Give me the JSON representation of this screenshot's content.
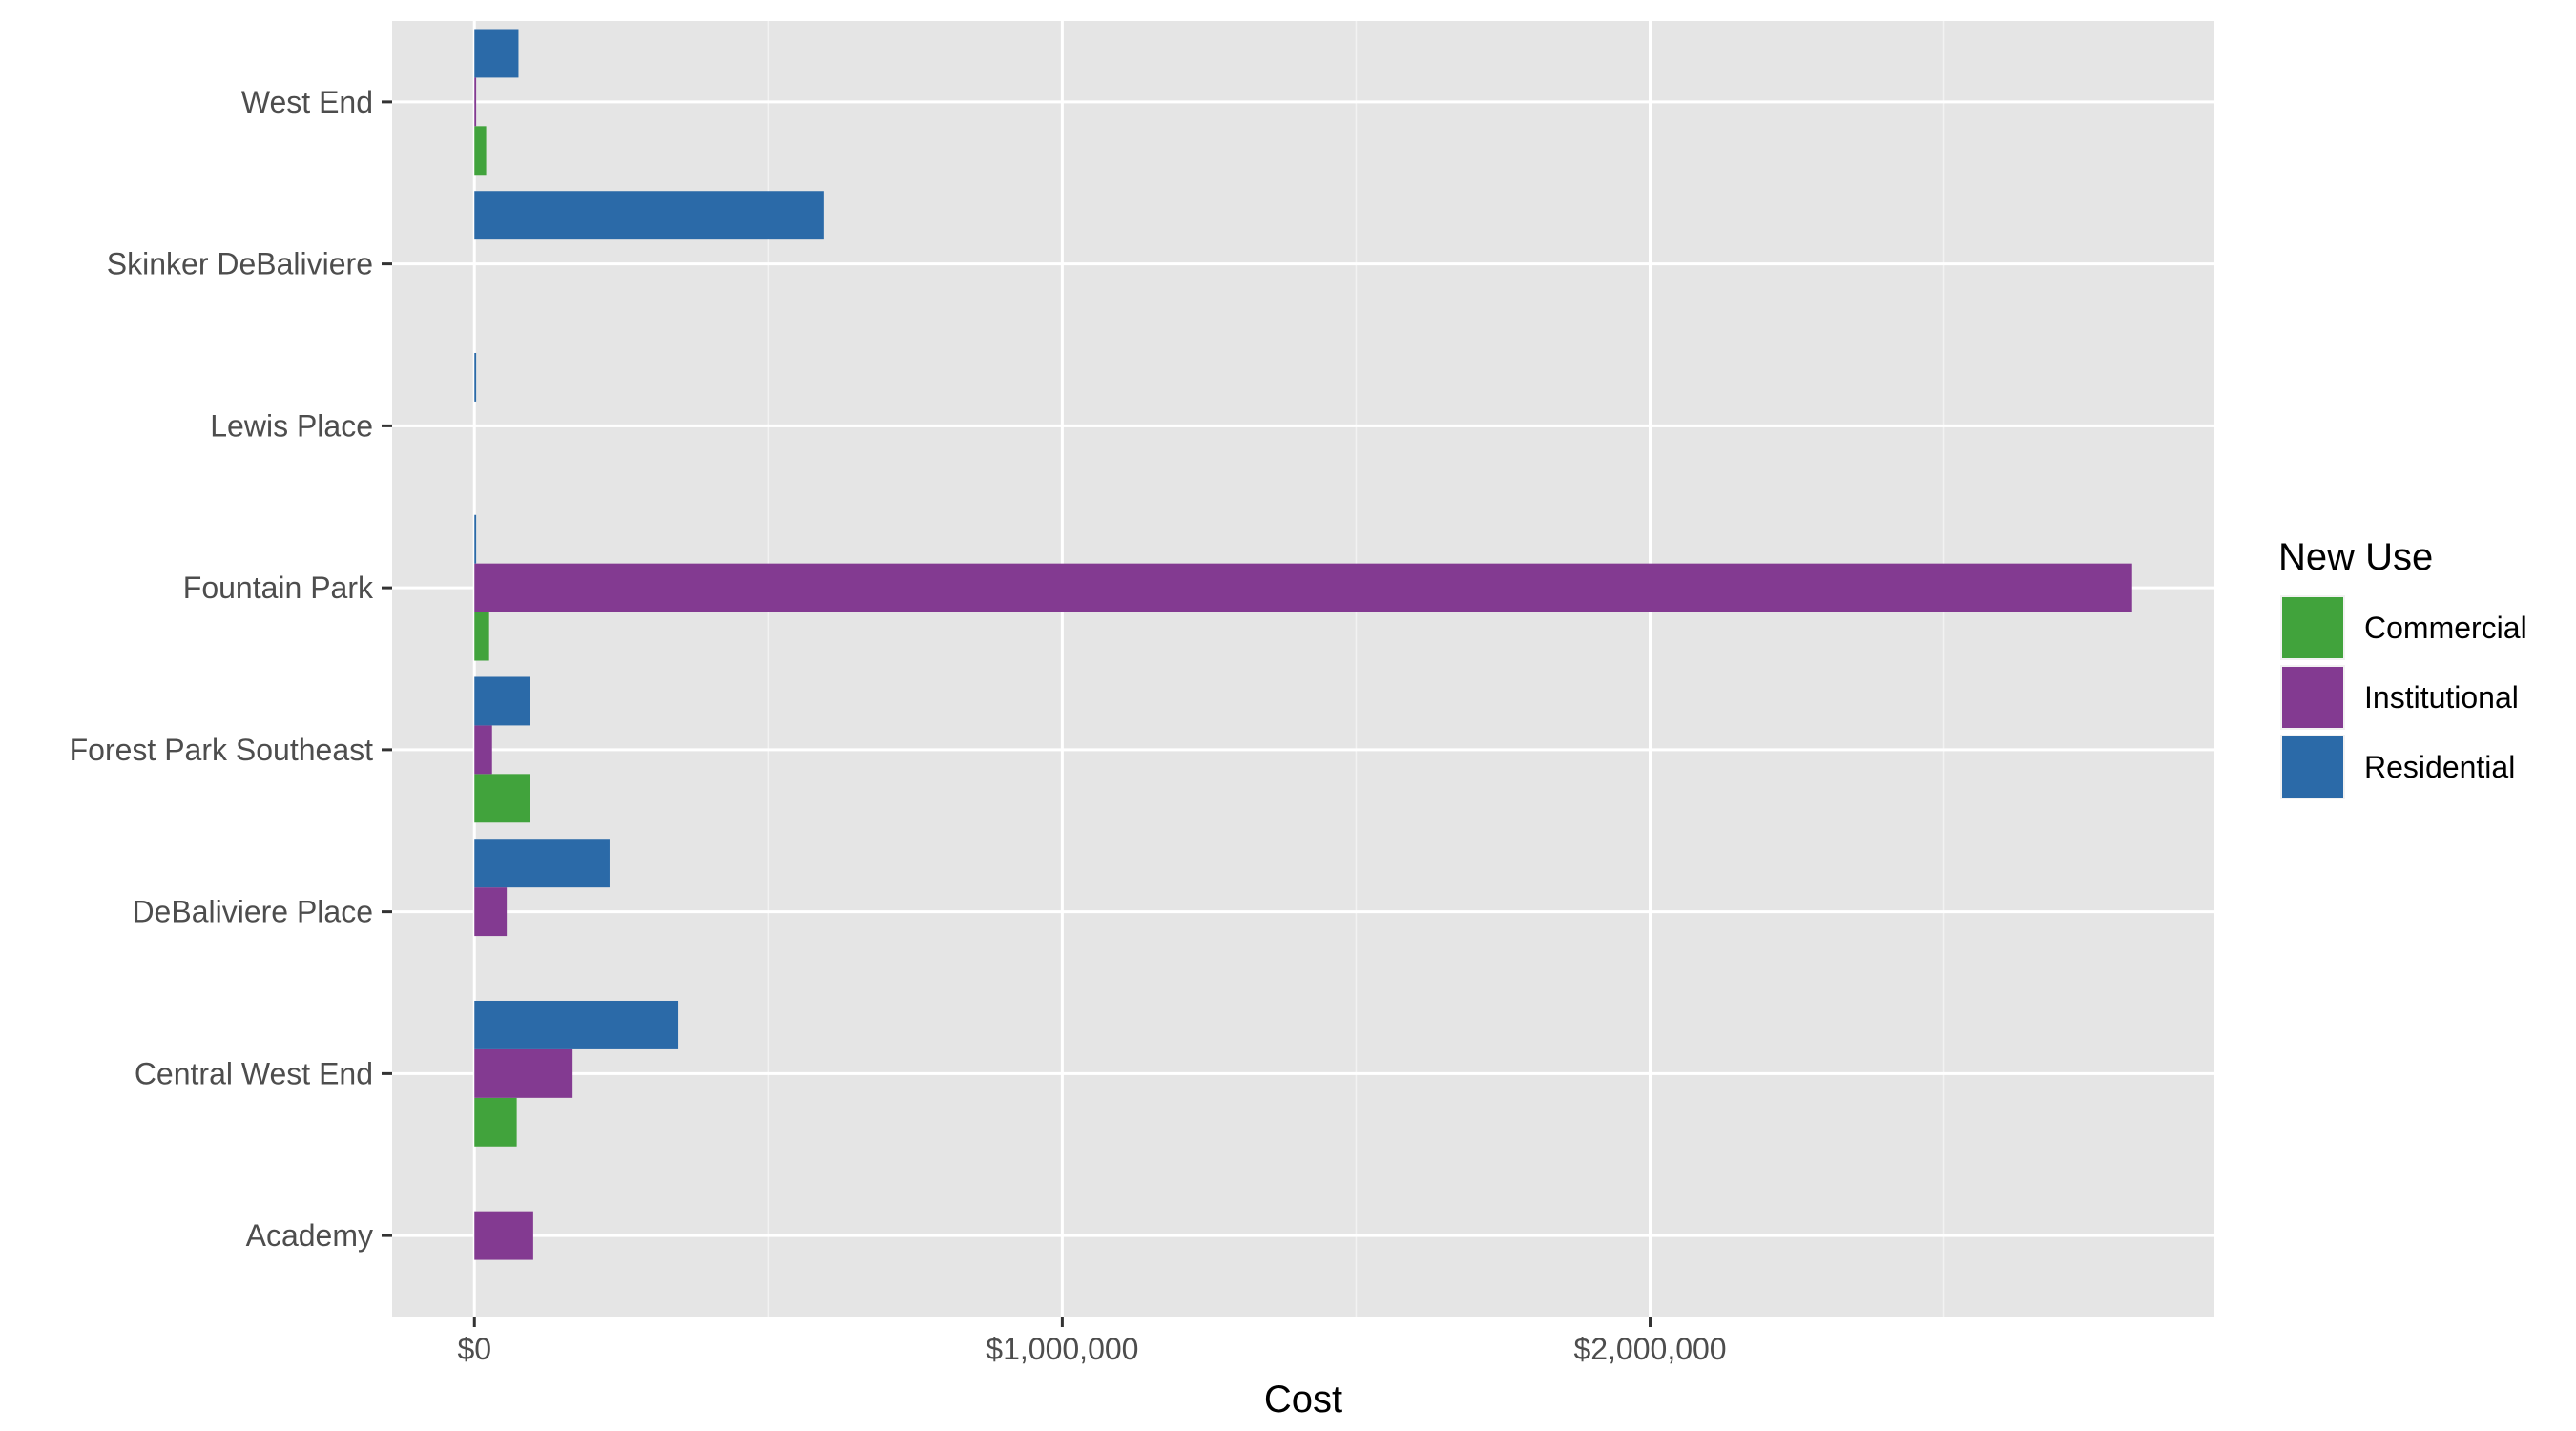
{
  "chart_data": {
    "type": "bar",
    "orientation": "horizontal",
    "title": "",
    "xlabel": "Cost",
    "ylabel": "",
    "xlim": [
      -140000,
      2960000
    ],
    "x_ticks": [
      0,
      1000000,
      2000000
    ],
    "x_tick_labels": [
      "$0",
      "$1,000,000",
      "$2,000,000"
    ],
    "grid": true,
    "legend": {
      "title": "New Use",
      "position": "right"
    },
    "categories": [
      "Academy",
      "Central West End",
      "DeBaliviere Place",
      "Forest Park Southeast",
      "Fountain Park",
      "Lewis Place",
      "Skinker DeBaliviere",
      "West End"
    ],
    "series": [
      {
        "name": "Commercial",
        "color": "#41a33c",
        "values": [
          null,
          72000,
          null,
          95000,
          25000,
          null,
          null,
          20000
        ]
      },
      {
        "name": "Institutional",
        "color": "#833a91",
        "values": [
          100000,
          167000,
          55000,
          30000,
          2820000,
          null,
          null,
          3000
        ]
      },
      {
        "name": "Residential",
        "color": "#2b6aa8",
        "values": [
          null,
          347000,
          230000,
          95000,
          3000,
          3000,
          595000,
          75000
        ]
      }
    ]
  }
}
